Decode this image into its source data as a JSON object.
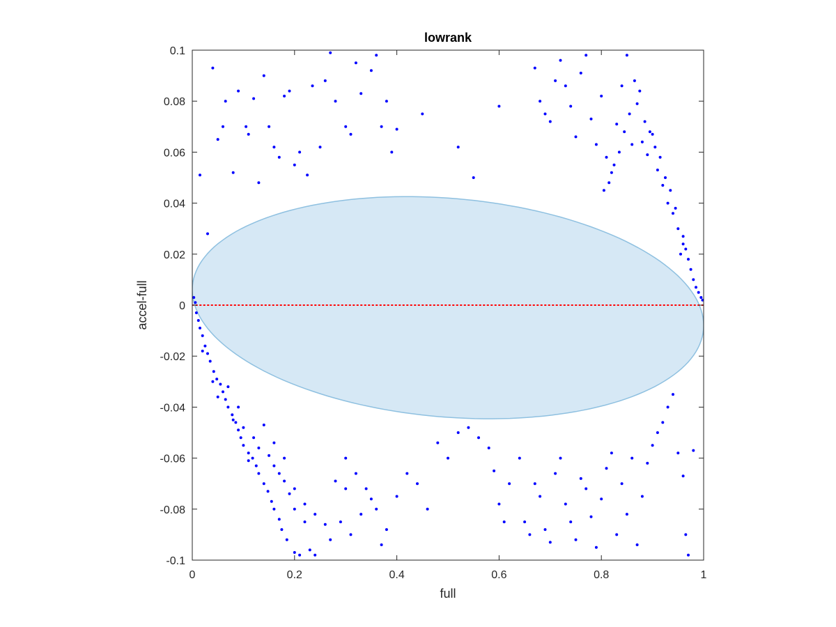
{
  "chart_data": {
    "type": "scatter",
    "title": "lowrank",
    "xlabel": "full",
    "ylabel": "accel-full",
    "xlim": [
      0,
      1
    ],
    "ylim": [
      -0.1,
      0.1
    ],
    "x_ticks": [
      0,
      0.2,
      0.4,
      0.6,
      0.8,
      1
    ],
    "x_tick_labels": [
      "0",
      "0.2",
      "0.4",
      "0.6",
      "0.8",
      "1"
    ],
    "y_ticks": [
      -0.1,
      -0.08,
      -0.06,
      -0.04,
      -0.02,
      0,
      0.02,
      0.04,
      0.06,
      0.08,
      0.1
    ],
    "y_tick_labels": [
      "-0.1",
      "-0.08",
      "-0.06",
      "-0.04",
      "-0.02",
      "0",
      "0.02",
      "0.04",
      "0.06",
      "0.08",
      "0.1"
    ],
    "grid": false,
    "box": true,
    "points_color": "#0000ff",
    "reference_line": {
      "y": 0,
      "color": "#ff0000",
      "style": "dotted"
    },
    "ellipse": {
      "center_x": 0.5,
      "center_y": 0.0,
      "radius_x": 0.5,
      "radius_y": 0.043,
      "tilt_y_at_x_min": 0.006,
      "tilt_y_at_x_max": -0.008,
      "fill_color": "#d6e8f5",
      "edge_color": "#8ec0e0"
    },
    "series": [
      {
        "points": [
          [
            0.003,
            0.003
          ],
          [
            0.006,
            0.001
          ],
          [
            0.008,
            -0.003
          ],
          [
            0.012,
            -0.006
          ],
          [
            0.015,
            -0.009
          ],
          [
            0.02,
            -0.012
          ],
          [
            0.025,
            -0.016
          ],
          [
            0.03,
            -0.019
          ],
          [
            0.035,
            -0.022
          ],
          [
            0.042,
            -0.026
          ],
          [
            0.048,
            -0.029
          ],
          [
            0.055,
            -0.031
          ],
          [
            0.06,
            -0.034
          ],
          [
            0.065,
            -0.037
          ],
          [
            0.07,
            -0.04
          ],
          [
            0.078,
            -0.043
          ],
          [
            0.085,
            -0.046
          ],
          [
            0.09,
            -0.049
          ],
          [
            0.095,
            -0.052
          ],
          [
            0.1,
            -0.055
          ],
          [
            0.11,
            -0.058
          ],
          [
            0.118,
            -0.06
          ],
          [
            0.125,
            -0.063
          ],
          [
            0.13,
            -0.066
          ],
          [
            0.14,
            -0.07
          ],
          [
            0.148,
            -0.073
          ],
          [
            0.155,
            -0.077
          ],
          [
            0.16,
            -0.08
          ],
          [
            0.17,
            -0.084
          ],
          [
            0.175,
            -0.088
          ],
          [
            0.185,
            -0.092
          ],
          [
            0.2,
            -0.097
          ],
          [
            0.21,
            -0.098
          ],
          [
            0.23,
            -0.096
          ],
          [
            0.24,
            -0.098
          ],
          [
            0.02,
            -0.018
          ],
          [
            0.04,
            -0.03
          ],
          [
            0.05,
            -0.036
          ],
          [
            0.07,
            -0.032
          ],
          [
            0.08,
            -0.045
          ],
          [
            0.1,
            -0.048
          ],
          [
            0.12,
            -0.052
          ],
          [
            0.13,
            -0.056
          ],
          [
            0.15,
            -0.059
          ],
          [
            0.16,
            -0.063
          ],
          [
            0.17,
            -0.066
          ],
          [
            0.18,
            -0.069
          ],
          [
            0.19,
            -0.074
          ],
          [
            0.2,
            -0.08
          ],
          [
            0.22,
            -0.085
          ],
          [
            0.09,
            -0.04
          ],
          [
            0.11,
            -0.061
          ],
          [
            0.14,
            -0.047
          ],
          [
            0.16,
            -0.054
          ],
          [
            0.18,
            -0.06
          ],
          [
            0.2,
            -0.072
          ],
          [
            0.22,
            -0.078
          ],
          [
            0.24,
            -0.082
          ],
          [
            0.26,
            -0.086
          ],
          [
            0.28,
            -0.069
          ],
          [
            0.3,
            -0.072
          ],
          [
            0.015,
            0.051
          ],
          [
            0.03,
            0.028
          ],
          [
            0.04,
            0.093
          ],
          [
            0.05,
            0.065
          ],
          [
            0.06,
            0.07
          ],
          [
            0.065,
            0.08
          ],
          [
            0.08,
            0.052
          ],
          [
            0.09,
            0.084
          ],
          [
            0.105,
            0.07
          ],
          [
            0.11,
            0.067
          ],
          [
            0.12,
            0.081
          ],
          [
            0.13,
            0.048
          ],
          [
            0.14,
            0.09
          ],
          [
            0.15,
            0.07
          ],
          [
            0.16,
            0.062
          ],
          [
            0.17,
            0.058
          ],
          [
            0.18,
            0.082
          ],
          [
            0.19,
            0.084
          ],
          [
            0.2,
            0.055
          ],
          [
            0.21,
            0.06
          ],
          [
            0.225,
            0.051
          ],
          [
            0.235,
            0.086
          ],
          [
            0.25,
            0.062
          ],
          [
            0.26,
            0.088
          ],
          [
            0.27,
            0.099
          ],
          [
            0.28,
            0.08
          ],
          [
            0.3,
            0.07
          ],
          [
            0.31,
            0.067
          ],
          [
            0.32,
            0.095
          ],
          [
            0.33,
            0.083
          ],
          [
            0.35,
            0.092
          ],
          [
            0.36,
            0.098
          ],
          [
            0.37,
            0.07
          ],
          [
            0.38,
            0.08
          ],
          [
            0.39,
            0.06
          ],
          [
            0.4,
            0.069
          ],
          [
            0.45,
            0.075
          ],
          [
            0.52,
            0.062
          ],
          [
            0.55,
            0.05
          ],
          [
            0.6,
            0.078
          ],
          [
            0.67,
            0.093
          ],
          [
            0.68,
            0.08
          ],
          [
            0.69,
            0.075
          ],
          [
            0.7,
            0.072
          ],
          [
            0.71,
            0.088
          ],
          [
            0.72,
            0.096
          ],
          [
            0.73,
            0.086
          ],
          [
            0.74,
            0.078
          ],
          [
            0.75,
            0.066
          ],
          [
            0.76,
            0.091
          ],
          [
            0.77,
            0.098
          ],
          [
            0.78,
            0.073
          ],
          [
            0.79,
            0.063
          ],
          [
            0.8,
            0.082
          ],
          [
            0.81,
            0.058
          ],
          [
            0.82,
            0.052
          ],
          [
            0.83,
            0.071
          ],
          [
            0.84,
            0.086
          ],
          [
            0.85,
            0.098
          ],
          [
            0.86,
            0.063
          ],
          [
            0.87,
            0.079
          ],
          [
            0.88,
            0.064
          ],
          [
            0.89,
            0.059
          ],
          [
            0.9,
            0.067
          ],
          [
            0.91,
            0.053
          ],
          [
            0.92,
            0.047
          ],
          [
            0.93,
            0.04
          ],
          [
            0.94,
            0.036
          ],
          [
            0.95,
            0.03
          ],
          [
            0.96,
            0.027
          ],
          [
            0.965,
            0.022
          ],
          [
            0.97,
            0.018
          ],
          [
            0.975,
            0.014
          ],
          [
            0.98,
            0.01
          ],
          [
            0.985,
            0.007
          ],
          [
            0.99,
            0.005
          ],
          [
            0.995,
            0.003
          ],
          [
            0.998,
            0.002
          ],
          [
            0.96,
            0.024
          ],
          [
            0.955,
            0.02
          ],
          [
            0.945,
            0.038
          ],
          [
            0.935,
            0.045
          ],
          [
            0.925,
            0.05
          ],
          [
            0.915,
            0.058
          ],
          [
            0.905,
            0.062
          ],
          [
            0.895,
            0.068
          ],
          [
            0.885,
            0.072
          ],
          [
            0.875,
            0.084
          ],
          [
            0.865,
            0.088
          ],
          [
            0.855,
            0.075
          ],
          [
            0.845,
            0.068
          ],
          [
            0.835,
            0.06
          ],
          [
            0.825,
            0.055
          ],
          [
            0.815,
            0.048
          ],
          [
            0.805,
            0.045
          ],
          [
            0.64,
            -0.06
          ],
          [
            0.65,
            -0.085
          ],
          [
            0.66,
            -0.09
          ],
          [
            0.67,
            -0.07
          ],
          [
            0.68,
            -0.075
          ],
          [
            0.69,
            -0.088
          ],
          [
            0.7,
            -0.093
          ],
          [
            0.71,
            -0.066
          ],
          [
            0.72,
            -0.06
          ],
          [
            0.73,
            -0.078
          ],
          [
            0.74,
            -0.085
          ],
          [
            0.75,
            -0.092
          ],
          [
            0.76,
            -0.068
          ],
          [
            0.77,
            -0.072
          ],
          [
            0.78,
            -0.083
          ],
          [
            0.79,
            -0.095
          ],
          [
            0.8,
            -0.076
          ],
          [
            0.81,
            -0.064
          ],
          [
            0.82,
            -0.058
          ],
          [
            0.83,
            -0.09
          ],
          [
            0.84,
            -0.07
          ],
          [
            0.85,
            -0.082
          ],
          [
            0.86,
            -0.06
          ],
          [
            0.87,
            -0.094
          ],
          [
            0.88,
            -0.075
          ],
          [
            0.89,
            -0.062
          ],
          [
            0.9,
            -0.055
          ],
          [
            0.91,
            -0.05
          ],
          [
            0.92,
            -0.046
          ],
          [
            0.93,
            -0.04
          ],
          [
            0.94,
            -0.035
          ],
          [
            0.95,
            -0.058
          ],
          [
            0.96,
            -0.067
          ],
          [
            0.965,
            -0.09
          ],
          [
            0.97,
            -0.098
          ],
          [
            0.98,
            -0.057
          ],
          [
            0.59,
            -0.065
          ],
          [
            0.6,
            -0.078
          ],
          [
            0.61,
            -0.085
          ],
          [
            0.62,
            -0.07
          ],
          [
            0.3,
            -0.06
          ],
          [
            0.32,
            -0.066
          ],
          [
            0.34,
            -0.072
          ],
          [
            0.36,
            -0.08
          ],
          [
            0.38,
            -0.088
          ],
          [
            0.4,
            -0.075
          ],
          [
            0.42,
            -0.066
          ],
          [
            0.44,
            -0.07
          ],
          [
            0.46,
            -0.08
          ],
          [
            0.48,
            -0.054
          ],
          [
            0.5,
            -0.06
          ],
          [
            0.52,
            -0.05
          ],
          [
            0.54,
            -0.048
          ],
          [
            0.56,
            -0.052
          ],
          [
            0.58,
            -0.056
          ],
          [
            0.27,
            -0.092
          ],
          [
            0.29,
            -0.085
          ],
          [
            0.31,
            -0.09
          ],
          [
            0.33,
            -0.082
          ],
          [
            0.35,
            -0.076
          ],
          [
            0.37,
            -0.094
          ]
        ]
      }
    ]
  }
}
